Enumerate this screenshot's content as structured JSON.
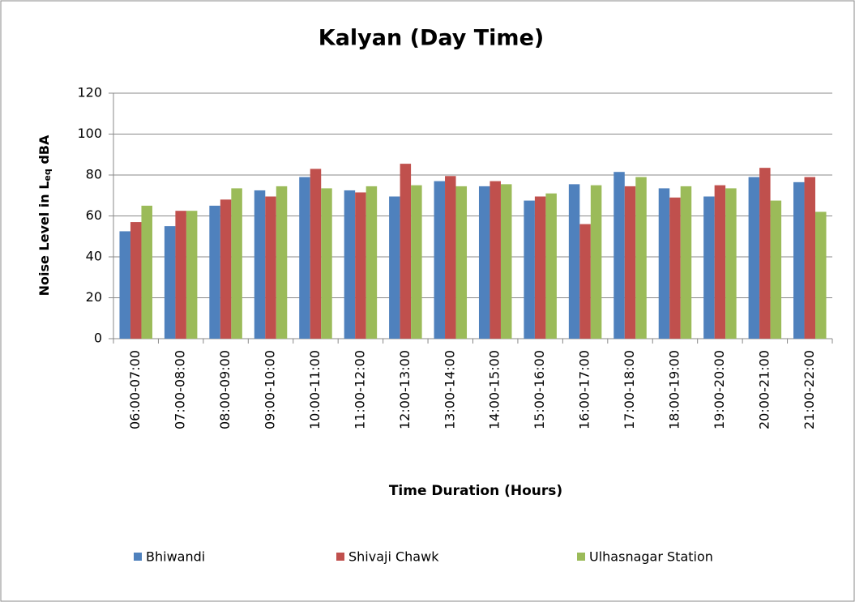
{
  "chart_data": {
    "type": "bar",
    "title": "Kalyan (Day Time)",
    "x_label": "Time Duration (Hours)",
    "y_label": [
      "Noise Level in L",
      "eq",
      " dBA"
    ],
    "categories": [
      "06:00-07:00",
      "07:00-08:00",
      "08:00-09:00",
      "09:00-10:00",
      "10:00-11:00",
      "11:00-12:00",
      "12:00-13:00",
      "13:00-14:00",
      "14:00-15:00",
      "15:00-16:00",
      "16:00-17:00",
      "17:00-18:00",
      "18:00-19:00",
      "19:00-20:00",
      "20:00-21:00",
      "21:00-22:00"
    ],
    "series": [
      {
        "name": "Bhiwandi",
        "color": "#4f81bd",
        "values": [
          52.5,
          55,
          65,
          72.5,
          79,
          72.5,
          69.5,
          77,
          74.5,
          67.5,
          75.5,
          81.5,
          73.5,
          69.5,
          79,
          76.5
        ]
      },
      {
        "name": "Shivaji Chawk",
        "color": "#c0504d",
        "values": [
          57,
          62.5,
          68,
          69.5,
          83,
          71.5,
          85.5,
          79.5,
          77,
          69.5,
          56,
          74.5,
          69,
          75,
          83.5,
          79
        ]
      },
      {
        "name": "Ulhasnagar Station",
        "color": "#9bbb59",
        "values": [
          65,
          62.5,
          73.5,
          74.5,
          73.5,
          74.5,
          75,
          74.5,
          75.5,
          71,
          75,
          79,
          74.5,
          73.5,
          67.5,
          62
        ]
      }
    ],
    "ylim": [
      0,
      120
    ],
    "yticks": [
      0,
      20,
      40,
      60,
      80,
      100,
      120
    ],
    "grid": true,
    "legend": "bottom"
  }
}
